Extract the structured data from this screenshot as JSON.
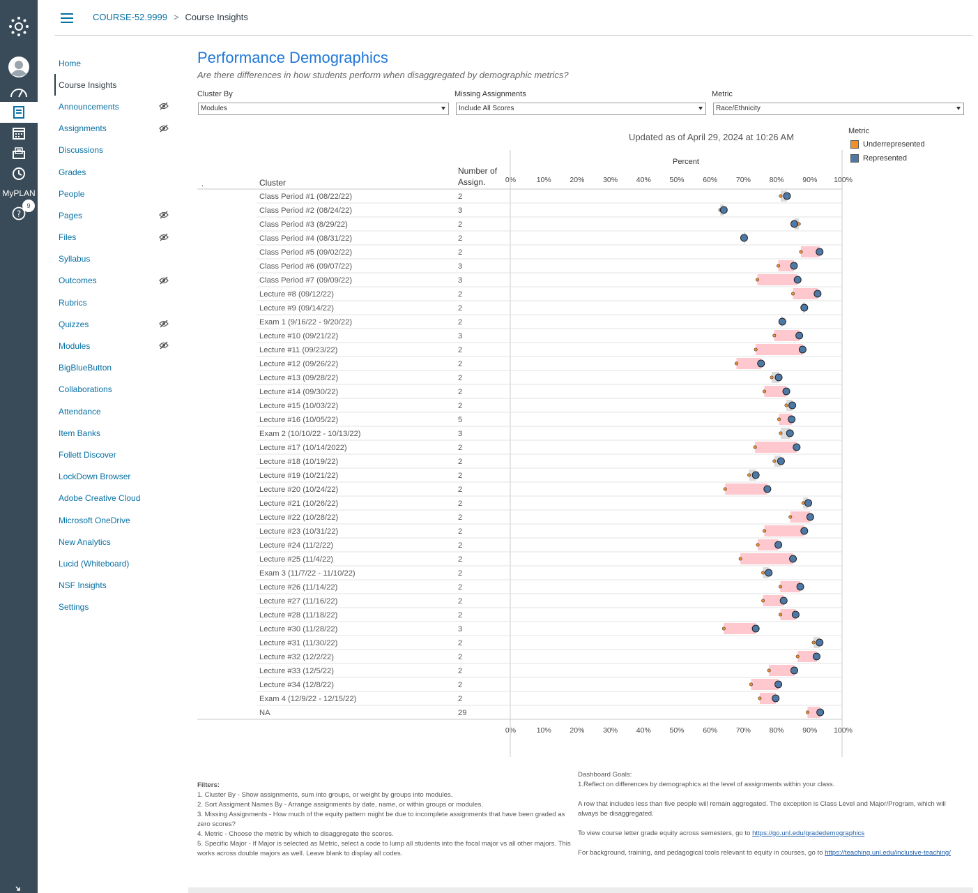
{
  "breadcrumb": {
    "course": "COURSE-52.9999",
    "current": "Course Insights"
  },
  "global_nav": {
    "items": [
      {
        "icon": "account-icon"
      },
      {
        "icon": "dashboard-icon"
      },
      {
        "icon": "courses-icon"
      },
      {
        "icon": "calendar-icon"
      },
      {
        "icon": "inbox-icon"
      },
      {
        "icon": "history-icon"
      },
      {
        "label": "MyPLAN"
      },
      {
        "icon": "help-icon",
        "badge": "9"
      }
    ]
  },
  "course_nav": {
    "items": [
      {
        "label": "Home",
        "hidden": false
      },
      {
        "label": "Course Insights",
        "hidden": false,
        "active": true
      },
      {
        "label": "Announcements",
        "hidden": true
      },
      {
        "label": "Assignments",
        "hidden": true
      },
      {
        "label": "Discussions",
        "hidden": false
      },
      {
        "label": "Grades",
        "hidden": false
      },
      {
        "label": "People",
        "hidden": false
      },
      {
        "label": "Pages",
        "hidden": true
      },
      {
        "label": "Files",
        "hidden": true
      },
      {
        "label": "Syllabus",
        "hidden": false
      },
      {
        "label": "Outcomes",
        "hidden": true
      },
      {
        "label": "Rubrics",
        "hidden": false
      },
      {
        "label": "Quizzes",
        "hidden": true
      },
      {
        "label": "Modules",
        "hidden": true
      },
      {
        "label": "BigBlueButton",
        "hidden": false
      },
      {
        "label": "Collaborations",
        "hidden": false
      },
      {
        "label": "Attendance",
        "hidden": false
      },
      {
        "label": "Item Banks",
        "hidden": false
      },
      {
        "label": "Follett Discover",
        "hidden": false
      },
      {
        "label": "LockDown Browser",
        "hidden": false
      },
      {
        "label": "Adobe Creative Cloud",
        "hidden": false
      },
      {
        "label": "Microsoft OneDrive",
        "hidden": false
      },
      {
        "label": "New Analytics",
        "hidden": false
      },
      {
        "label": "Lucid (Whiteboard)",
        "hidden": false
      },
      {
        "label": "NSF Insights",
        "hidden": false
      },
      {
        "label": "Settings",
        "hidden": false
      }
    ]
  },
  "dashboard": {
    "title": "Performance Demographics",
    "subtitle": "Are there differences in how students perform when disaggregated by demographic metrics?",
    "filters": {
      "cluster_by": {
        "label": "Cluster By",
        "value": "Modules"
      },
      "missing": {
        "label": "Missing Assignments",
        "value": "Include All Scores"
      },
      "metric": {
        "label": "Metric",
        "value": "Race/Ethnicity"
      }
    },
    "updated": "Updated as of April 29, 2024 at 10:26 AM",
    "legend": {
      "title": "Metric",
      "underrepresented": "Underrepresented",
      "represented": "Represented"
    },
    "notes": {
      "filters_title": "Filters:",
      "filters": [
        "1. Cluster By - Show assignments, sum into groups, or weight by groups into modules.",
        "2. Sort Assigment Names By -  Arrange assignments by date, name, or within groups or modules.",
        "3. Missing Assignments - How much of the equity pattern might be due to incomplete assignments that have been graded as zero scores?",
        "4. Metric - Choose the metric by which to disaggregate the scores.",
        "5. Specific Major - If Major is selected as Metric, select a code to lump all students into the focal major vs all other majors. This works across double majors as well. Leave blank to display all codes."
      ],
      "goals_title": "Dashboard Goals:",
      "goal1": "1.Reflect on differences by demographics at the level of assignments within your class.",
      "goal2": "A row that includes less than five people will remain aggregated. The exception is Class Level and Major/Program, which will always be disaggregated.",
      "goal3_text": "To view course letter grade equity across semesters, go to ",
      "goal3_link": "https://go.unl.edu/gradedemographics",
      "goal4_text": "For background, training, and pedagogical tools relevant to equity in courses, go to ",
      "goal4_link": "https://teaching.unl.edu/inclusive-teaching/"
    }
  },
  "chart_data": {
    "type": "dot",
    "title": "Percent",
    "dot_header": ".",
    "cluster_header": "Cluster",
    "count_header": "Number of Assign.",
    "xlim": [
      0,
      100
    ],
    "x_ticks": [
      "0%",
      "10%",
      "20%",
      "30%",
      "40%",
      "50%",
      "60%",
      "70%",
      "80%",
      "90%",
      "100%"
    ],
    "colors": {
      "underrepresented": "#f28e2b",
      "represented": "#4e79a7",
      "gap_band": "#ffc8cf",
      "neutral_band": "#dcdcdc"
    },
    "rows": [
      {
        "cluster": "Class Period #1 (08/22/22)",
        "count": "2",
        "underrepresented": 80.8,
        "represented": 82.7
      },
      {
        "cluster": "Class Period #2 (08/24/22)",
        "count": "3",
        "underrepresented": 62.6,
        "represented": 63.7
      },
      {
        "cluster": "Class Period #3 (8/29/22)",
        "count": "2",
        "underrepresented": 86.3,
        "represented": 84.9
      },
      {
        "cluster": "Class Period #4 (08/31/22)",
        "count": "2",
        "underrepresented": 69.7,
        "represented": 69.8
      },
      {
        "cluster": "Class Period #5 (09/02/22)",
        "count": "2",
        "underrepresented": 86.9,
        "represented": 92.5
      },
      {
        "cluster": "Class Period #6 (09/07/22)",
        "count": "3",
        "underrepresented": 80.1,
        "represented": 84.8
      },
      {
        "cluster": "Class Period #7 (09/09/22)",
        "count": "3",
        "underrepresented": 73.8,
        "represented": 85.9
      },
      {
        "cluster": "Lecture #8 (09/12/22)",
        "count": "2",
        "underrepresented": 84.5,
        "represented": 91.9
      },
      {
        "cluster": "Lecture #9 (09/14/22)",
        "count": "2",
        "underrepresented": 87.5,
        "represented": 87.9
      },
      {
        "cluster": "Exam 1 (9/16/22 - 9/20/22)",
        "count": "2",
        "underrepresented": 80.9,
        "represented": 81.3
      },
      {
        "cluster": "Lecture #10 (09/21/22)",
        "count": "3",
        "underrepresented": 78.9,
        "represented": 86.4
      },
      {
        "cluster": "Lecture #11 (09/23/22)",
        "count": "2",
        "underrepresented": 73.3,
        "represented": 87.4
      },
      {
        "cluster": "Lecture #12 (09/26/22)",
        "count": "2",
        "underrepresented": 67.5,
        "represented": 74.9
      },
      {
        "cluster": "Lecture #13 (09/28/22)",
        "count": "2",
        "underrepresented": 78.1,
        "represented": 80.2
      },
      {
        "cluster": "Lecture #14 (09/30/22)",
        "count": "2",
        "underrepresented": 75.9,
        "represented": 82.5
      },
      {
        "cluster": "Lecture #15 (10/03/22)",
        "count": "2",
        "underrepresented": 82.5,
        "represented": 84.3
      },
      {
        "cluster": "Lecture #16 (10/05/22)",
        "count": "5",
        "underrepresented": 80.3,
        "represented": 84.1
      },
      {
        "cluster": "Exam 2 (10/10/22 - 10/13/22)",
        "count": "3",
        "underrepresented": 80.8,
        "represented": 83.6
      },
      {
        "cluster": "Lecture #17 (10/14/2022)",
        "count": "2",
        "underrepresented": 73.1,
        "represented": 85.6
      },
      {
        "cluster": "Lecture #18 (10/19/22)",
        "count": "2",
        "underrepresented": 78.9,
        "represented": 80.9
      },
      {
        "cluster": "Lecture #19 (10/21/22)",
        "count": "2",
        "underrepresented": 71.3,
        "represented": 73.3
      },
      {
        "cluster": "Lecture #20 (10/24/22)",
        "count": "2",
        "underrepresented": 64.1,
        "represented": 76.8
      },
      {
        "cluster": "Lecture #21 (10/26/22)",
        "count": "2",
        "underrepresented": 87.6,
        "represented": 89.1
      },
      {
        "cluster": "Lecture #22 (10/28/22)",
        "count": "2",
        "underrepresented": 83.7,
        "represented": 89.7
      },
      {
        "cluster": "Lecture #23 (10/31/22)",
        "count": "2",
        "underrepresented": 75.9,
        "represented": 87.9
      },
      {
        "cluster": "Lecture #24 (11/2/22)",
        "count": "2",
        "underrepresented": 73.9,
        "represented": 80.1
      },
      {
        "cluster": "Lecture #25 (11/4/22)",
        "count": "2",
        "underrepresented": 68.7,
        "represented": 84.5
      },
      {
        "cluster": "Exam 3 (11/7/22 - 11/10/22)",
        "count": "2",
        "underrepresented": 75.5,
        "represented": 77.2
      },
      {
        "cluster": "Lecture #26 (11/14/22)",
        "count": "2",
        "underrepresented": 80.7,
        "represented": 86.7
      },
      {
        "cluster": "Lecture #27 (11/16/22)",
        "count": "2",
        "underrepresented": 75.5,
        "represented": 81.7
      },
      {
        "cluster": "Lecture #28 (11/18/22)",
        "count": "2",
        "underrepresented": 80.7,
        "represented": 85.3
      },
      {
        "cluster": "Lecture #30 (11/28/22)",
        "count": "3",
        "underrepresented": 63.7,
        "represented": 73.3
      },
      {
        "cluster": "Lecture #31 (11/30/22)",
        "count": "2",
        "underrepresented": 90.7,
        "represented": 92.5
      },
      {
        "cluster": "Lecture #32 (12/2/22)",
        "count": "2",
        "underrepresented": 85.9,
        "represented": 91.6
      },
      {
        "cluster": "Lecture #33 (12/5/22)",
        "count": "2",
        "underrepresented": 77.3,
        "represented": 84.9
      },
      {
        "cluster": "Lecture #34 (12/8/22)",
        "count": "2",
        "underrepresented": 71.9,
        "represented": 80.1
      },
      {
        "cluster": "Exam 4 (12/9/22 - 12/15/22)",
        "count": "2",
        "underrepresented": 74.5,
        "represented": 79.3
      },
      {
        "cluster": "NA",
        "count": "29",
        "underrepresented": 88.9,
        "represented": 92.7
      }
    ]
  }
}
